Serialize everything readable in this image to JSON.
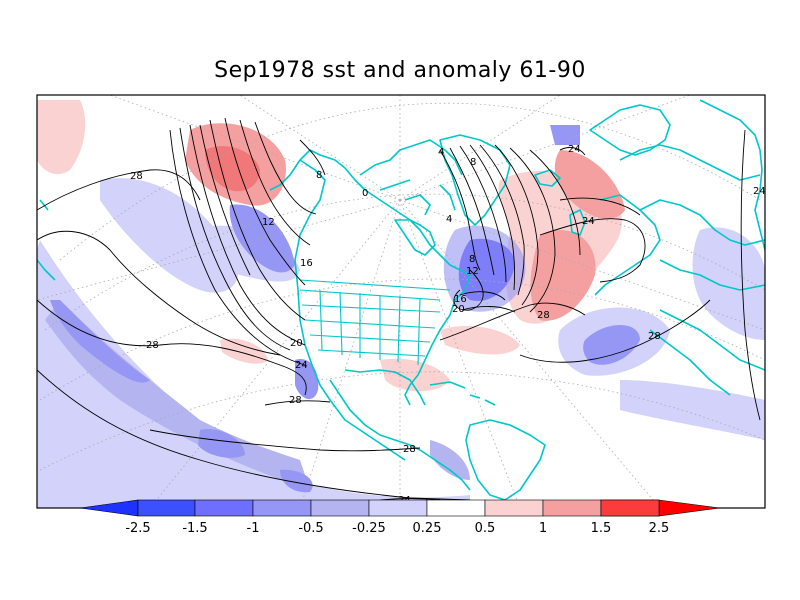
{
  "title": "Sep1978 sst and anomaly 61-90",
  "colors": {
    "neg_strong": "#1e32ff",
    "neg_25": "#5a5aff",
    "neg_15": "#9696f5",
    "neg_1": "#b4b4f0",
    "neg_05": "#d2d2fa",
    "neutral": "#ffffff",
    "pos_025": "#fad2d2",
    "pos_05": "#f5a0a0",
    "pos_1": "#f07878",
    "pos_15": "#fa3c3c",
    "pos_strong": "#ff0000",
    "land": "#00c8c8",
    "contour": "#000000",
    "grid": "#aaaaaa"
  },
  "colorbar": {
    "labels": [
      "-2.5",
      "-1.5",
      "-1",
      "-0.5",
      "-0.25",
      "0.25",
      "0.5",
      "1",
      "1.5",
      "2.5"
    ]
  },
  "contour_labels": [
    {
      "id": "a",
      "text": "28"
    },
    {
      "id": "b",
      "text": "28"
    },
    {
      "id": "c",
      "text": "28"
    },
    {
      "id": "d",
      "text": "28"
    },
    {
      "id": "e",
      "text": "28"
    },
    {
      "id": "f",
      "text": "28"
    },
    {
      "id": "g",
      "text": "24"
    },
    {
      "id": "h",
      "text": "24"
    },
    {
      "id": "i",
      "text": "24"
    },
    {
      "id": "j",
      "text": "24"
    },
    {
      "id": "k",
      "text": "20"
    },
    {
      "id": "l",
      "text": "20"
    },
    {
      "id": "m",
      "text": "16"
    },
    {
      "id": "n",
      "text": "16"
    },
    {
      "id": "o",
      "text": "12"
    },
    {
      "id": "p",
      "text": "12"
    },
    {
      "id": "q",
      "text": "8"
    },
    {
      "id": "r",
      "text": "8"
    },
    {
      "id": "s",
      "text": "8"
    },
    {
      "id": "t",
      "text": "4"
    },
    {
      "id": "u",
      "text": "4"
    },
    {
      "id": "v",
      "text": "0"
    },
    {
      "id": "w",
      "text": "24"
    }
  ]
}
